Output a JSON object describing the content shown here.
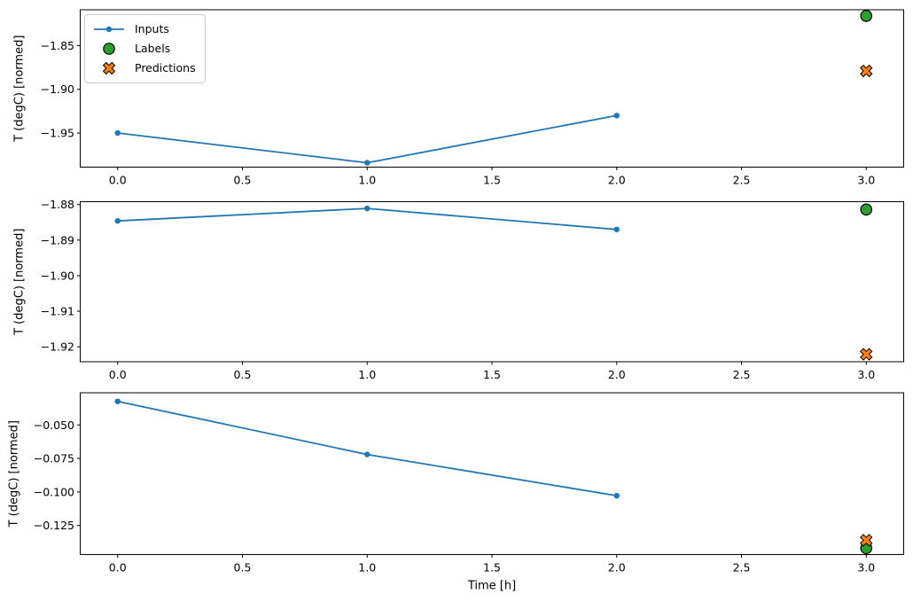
{
  "figure": {
    "xlabel": "Time [h]",
    "ylabel": "T (degC) [normed]",
    "colors": {
      "inputs": "#1f77b4",
      "labels": "#2ca02c",
      "predictions": "#ff7f0e",
      "spine": "#000000",
      "legend_border": "#cccccc",
      "background": "#ffffff"
    },
    "legend": {
      "position": "upper left",
      "entries": [
        {
          "label": "Inputs",
          "marker": "line-dot",
          "color": "#1f77b4"
        },
        {
          "label": "Labels",
          "marker": "circle",
          "color": "#2ca02c"
        },
        {
          "label": "Predictions",
          "marker": "X",
          "color": "#ff7f0e"
        }
      ]
    }
  },
  "chart_data": [
    {
      "type": "line",
      "title": "",
      "xlabel": "",
      "ylabel": "T (degC) [normed]",
      "xlim": [
        -0.15,
        3.15
      ],
      "ylim": [
        -1.989,
        -1.809
      ],
      "grid": false,
      "x_ticks": [
        {
          "v": 0.0,
          "label": "0.0"
        },
        {
          "v": 0.5,
          "label": "0.5"
        },
        {
          "v": 1.0,
          "label": "1.0"
        },
        {
          "v": 1.5,
          "label": "1.5"
        },
        {
          "v": 2.0,
          "label": "2.0"
        },
        {
          "v": 2.5,
          "label": "2.5"
        },
        {
          "v": 3.0,
          "label": "3.0"
        }
      ],
      "y_ticks": [
        {
          "v": -1.85,
          "label": "−1.85"
        },
        {
          "v": -1.9,
          "label": "−1.90"
        },
        {
          "v": -1.95,
          "label": "−1.95"
        }
      ],
      "series": [
        {
          "name": "Inputs",
          "marker": "dot",
          "line": true,
          "color": "#1f77b4",
          "x": [
            0,
            1,
            2
          ],
          "y": [
            -1.95,
            -1.984,
            -1.93
          ]
        },
        {
          "name": "Labels",
          "marker": "circle",
          "line": false,
          "color": "#2ca02c",
          "x": [
            3
          ],
          "y": [
            -1.816
          ]
        },
        {
          "name": "Predictions",
          "marker": "X",
          "line": false,
          "color": "#ff7f0e",
          "x": [
            3
          ],
          "y": [
            -1.879
          ]
        }
      ]
    },
    {
      "type": "line",
      "title": "",
      "xlabel": "",
      "ylabel": "T (degC) [normed]",
      "xlim": [
        -0.15,
        3.15
      ],
      "ylim": [
        -1.9242,
        -1.8792
      ],
      "grid": false,
      "x_ticks": [
        {
          "v": 0.0,
          "label": "0.0"
        },
        {
          "v": 0.5,
          "label": "0.5"
        },
        {
          "v": 1.0,
          "label": "1.0"
        },
        {
          "v": 1.5,
          "label": "1.5"
        },
        {
          "v": 2.0,
          "label": "2.0"
        },
        {
          "v": 2.5,
          "label": "2.5"
        },
        {
          "v": 3.0,
          "label": "3.0"
        }
      ],
      "y_ticks": [
        {
          "v": -1.88,
          "label": "−1.88"
        },
        {
          "v": -1.89,
          "label": "−1.89"
        },
        {
          "v": -1.9,
          "label": "−1.90"
        },
        {
          "v": -1.91,
          "label": "−1.91"
        },
        {
          "v": -1.92,
          "label": "−1.92"
        }
      ],
      "series": [
        {
          "name": "Inputs",
          "marker": "dot",
          "line": true,
          "color": "#1f77b4",
          "x": [
            0,
            1,
            2
          ],
          "y": [
            -1.8846,
            -1.8811,
            -1.887
          ]
        },
        {
          "name": "Labels",
          "marker": "circle",
          "line": false,
          "color": "#2ca02c",
          "x": [
            3
          ],
          "y": [
            -1.8814
          ]
        },
        {
          "name": "Predictions",
          "marker": "X",
          "line": false,
          "color": "#ff7f0e",
          "x": [
            3
          ],
          "y": [
            -1.9221
          ]
        }
      ]
    },
    {
      "type": "line",
      "title": "",
      "xlabel": "Time [h]",
      "ylabel": "T (degC) [normed]",
      "xlim": [
        -0.15,
        3.15
      ],
      "ylim": [
        -0.1467,
        -0.026
      ],
      "grid": false,
      "x_ticks": [
        {
          "v": 0.0,
          "label": "0.0"
        },
        {
          "v": 0.5,
          "label": "0.5"
        },
        {
          "v": 1.0,
          "label": "1.0"
        },
        {
          "v": 1.5,
          "label": "1.5"
        },
        {
          "v": 2.0,
          "label": "2.0"
        },
        {
          "v": 2.5,
          "label": "2.5"
        },
        {
          "v": 3.0,
          "label": "3.0"
        }
      ],
      "y_ticks": [
        {
          "v": -0.05,
          "label": "−0.050"
        },
        {
          "v": -0.075,
          "label": "−0.075"
        },
        {
          "v": -0.1,
          "label": "−0.100"
        },
        {
          "v": -0.125,
          "label": "−0.125"
        }
      ],
      "series": [
        {
          "name": "Inputs",
          "marker": "dot",
          "line": true,
          "color": "#1f77b4",
          "x": [
            0,
            1,
            2
          ],
          "y": [
            -0.0324,
            -0.072,
            -0.1028
          ]
        },
        {
          "name": "Labels",
          "marker": "circle",
          "line": false,
          "color": "#2ca02c",
          "x": [
            3
          ],
          "y": [
            -0.1419
          ]
        },
        {
          "name": "Predictions",
          "marker": "X",
          "line": false,
          "color": "#ff7f0e",
          "x": [
            3
          ],
          "y": [
            -0.136
          ]
        }
      ]
    }
  ]
}
